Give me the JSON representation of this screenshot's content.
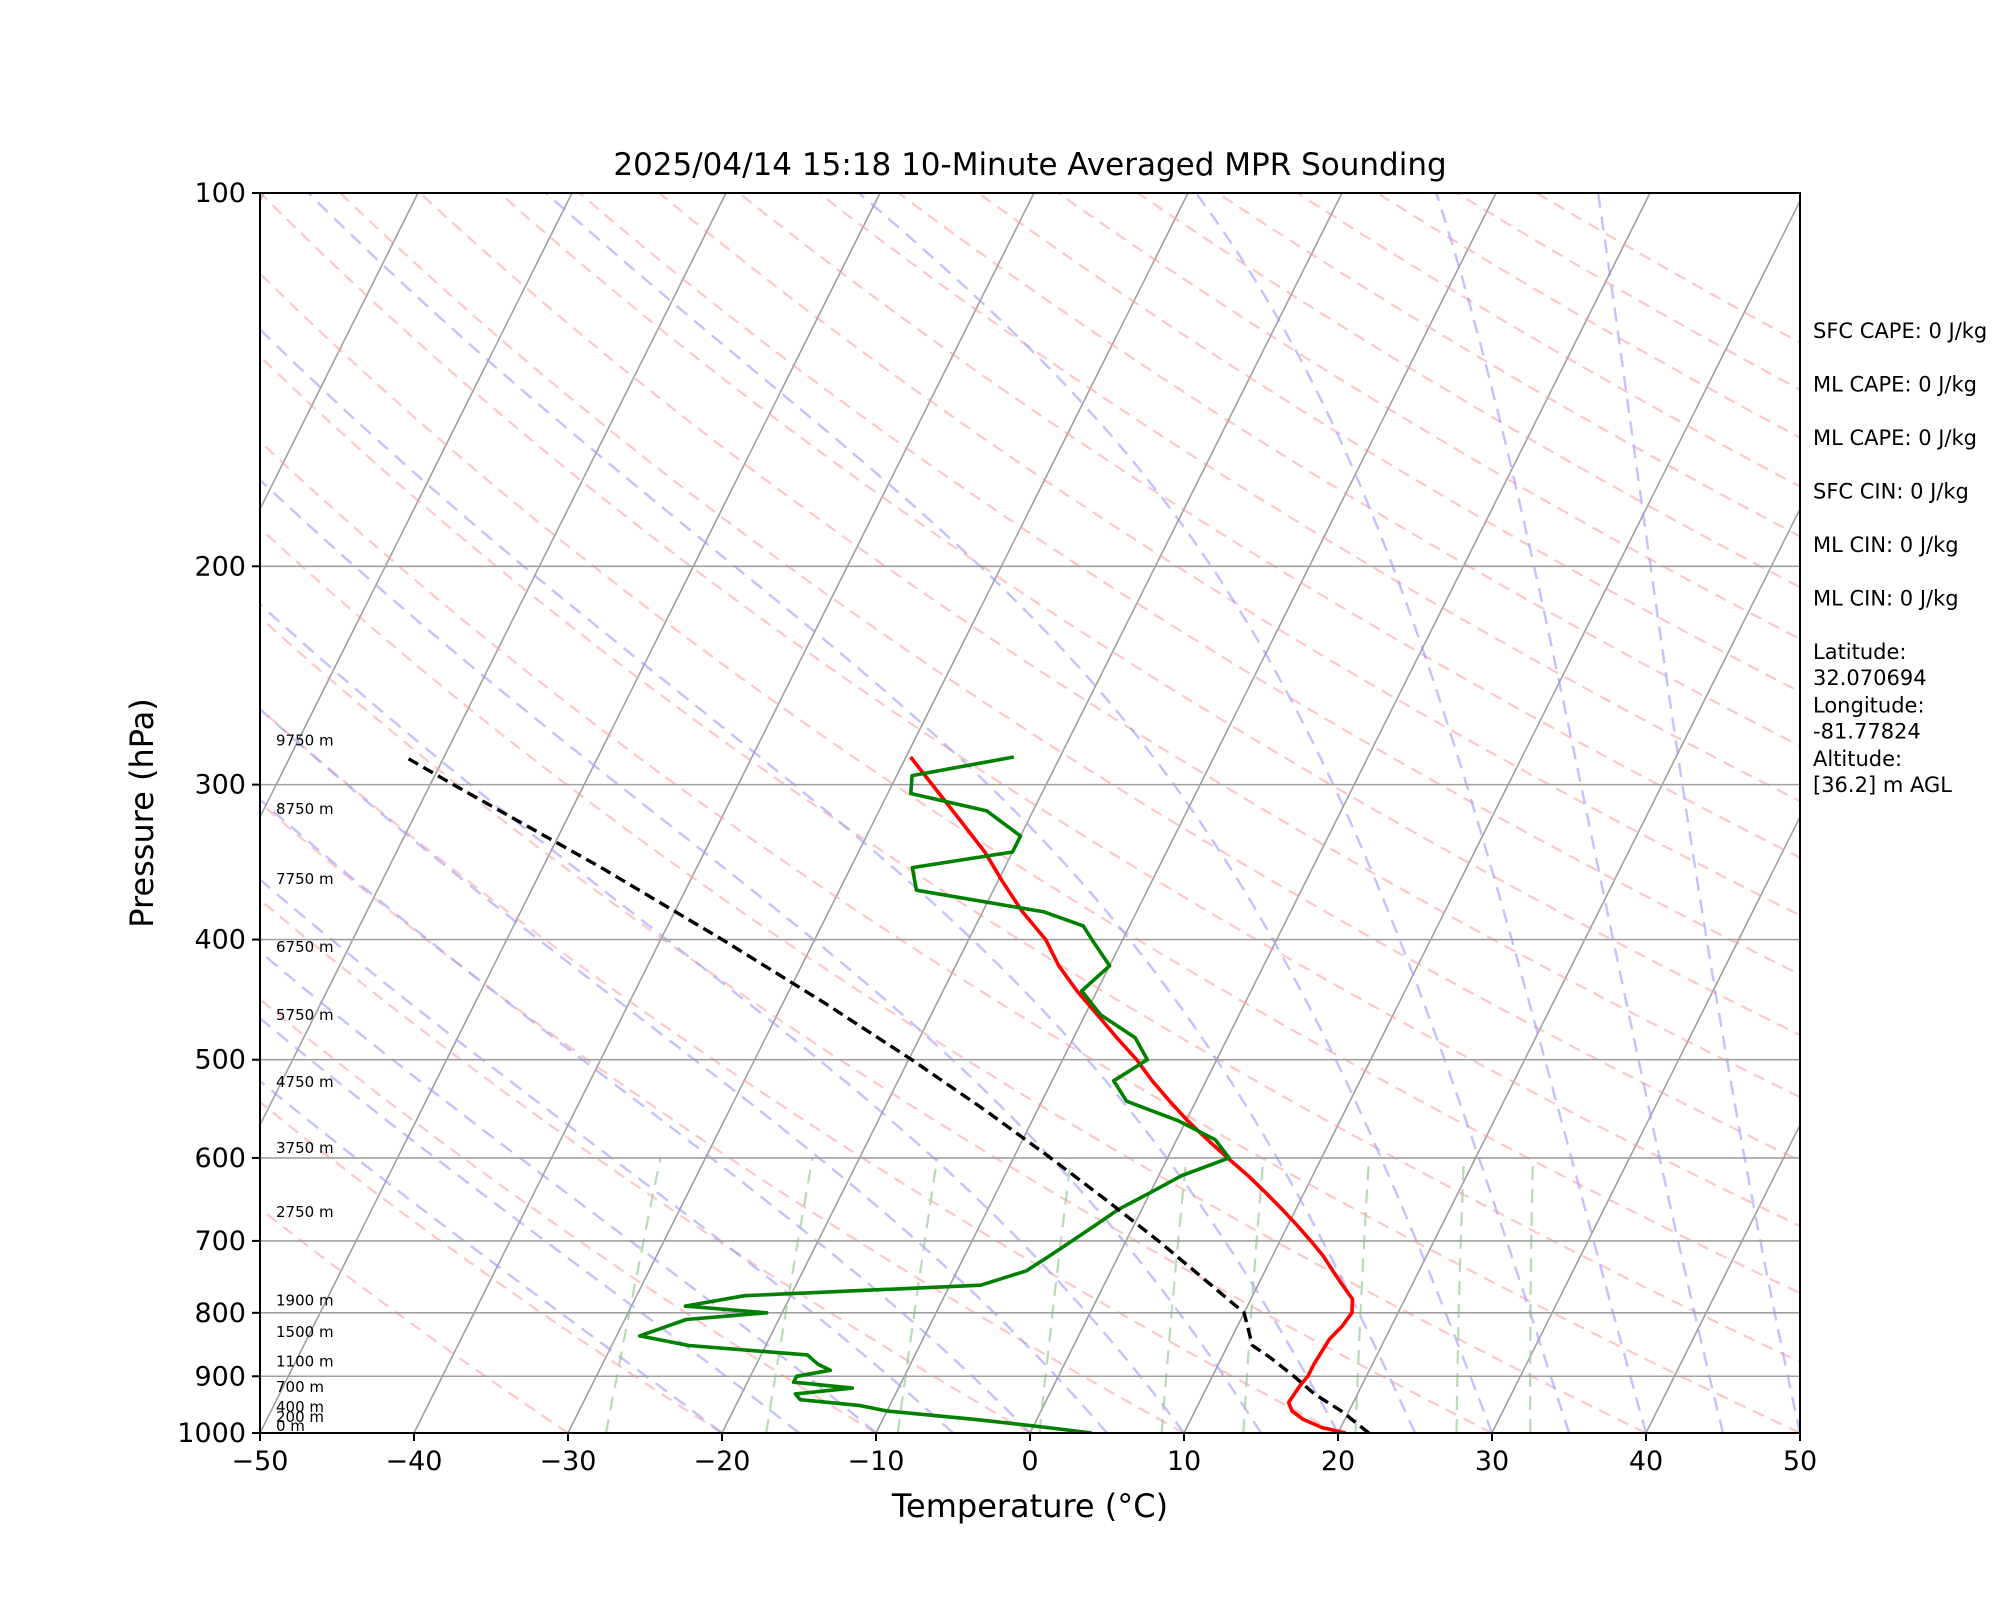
{
  "chart_data": {
    "type": "line",
    "subtype": "skew-t log-p",
    "title": "2025/04/14 15:18 10-Minute Averaged MPR Sounding",
    "xlabel": "Temperature (°C)",
    "ylabel": "Pressure (hPa)",
    "xlim": [
      -50,
      50
    ],
    "ylim": [
      1000,
      100
    ],
    "y_scale": "log",
    "grid": true,
    "x_ticks": [
      "−50",
      "−40",
      "−30",
      "−20",
      "−10",
      "0",
      "10",
      "20",
      "30",
      "40",
      "50"
    ],
    "y_ticks": [
      "100",
      "200",
      "300",
      "400",
      "500",
      "600",
      "700",
      "800",
      "900",
      "1000"
    ],
    "series": [
      {
        "color": "#ff0000",
        "style": "solid",
        "pressure": [
          1000,
          990,
          975,
          960,
          945,
          930,
          915,
          900,
          880,
          860,
          840,
          820,
          800,
          780,
          760,
          740,
          720,
          700,
          680,
          660,
          640,
          620,
          600,
          580,
          560,
          540,
          520,
          500,
          480,
          460,
          440,
          420,
          400,
          380,
          360,
          340,
          320,
          300,
          285
        ],
        "temperature": [
          20.5,
          18.8,
          17.3,
          16.3,
          15.8,
          15.9,
          16.0,
          16.2,
          16.2,
          16.3,
          16.4,
          16.8,
          17.0,
          16.6,
          15.5,
          14.4,
          13.3,
          12.0,
          10.6,
          9.1,
          7.5,
          5.8,
          3.9,
          2.0,
          0.1,
          -1.7,
          -3.5,
          -5.2,
          -7.2,
          -9.2,
          -11.3,
          -13.3,
          -15.0,
          -17.4,
          -19.6,
          -21.8,
          -24.5,
          -27.4,
          -29.7
        ]
      },
      {
        "color": "#008000",
        "style": "solid",
        "pressure": [
          1000,
          990,
          975,
          960,
          950,
          940,
          930,
          920,
          910,
          900,
          890,
          880,
          865,
          850,
          835,
          820,
          810,
          800,
          790,
          775,
          760,
          740,
          720,
          700,
          680,
          660,
          640,
          620,
          600,
          580,
          560,
          540,
          520,
          500,
          480,
          460,
          440,
          420,
          400,
          390,
          380,
          365,
          350,
          340,
          330,
          315,
          305,
          295,
          285
        ],
        "temperature": [
          4.0,
          1.0,
          -4.0,
          -10.0,
          -12.0,
          -16.0,
          -16.5,
          -13.0,
          -17.0,
          -17.0,
          -15.0,
          -16.0,
          -17.0,
          -25.0,
          -28.5,
          -27.0,
          -26.0,
          -21.0,
          -26.5,
          -23.0,
          -8.0,
          -5.5,
          -4.5,
          -3.5,
          -2.5,
          -1.5,
          0.0,
          1.5,
          4.0,
          2.5,
          -0.5,
          -4.5,
          -6.0,
          -4.5,
          -6.0,
          -9.0,
          -11.0,
          -10.0,
          -12.0,
          -13.0,
          -16.0,
          -25.0,
          -26.0,
          -20.0,
          -20.0,
          -23.0,
          -28.5,
          -29.0,
          -23.0
        ]
      },
      {
        "color": "#000000",
        "style": "dashed",
        "pressure": [
          1000,
          960,
          930,
          900,
          870,
          850,
          800,
          750,
          700,
          650,
          600,
          550,
          500,
          450,
          400,
          350,
          300,
          285
        ],
        "temperature": [
          22.0,
          19.5,
          17.2,
          15.3,
          13.2,
          11.6,
          10.0,
          6.2,
          2.1,
          -2.5,
          -7.6,
          -13.3,
          -19.8,
          -27.3,
          -36.0,
          -46.2,
          -58.5,
          -62.5
        ]
      }
    ],
    "height_labels": [
      "9750 m",
      "8750 m",
      "7750 m",
      "6750 m",
      "5750 m",
      "4750 m",
      "3750 m",
      "2750 m",
      "1900 m",
      "1500 m",
      "1100 m",
      "700 m",
      "400 m",
      "200 m",
      "0 m"
    ],
    "height_label_pressures": [
      280,
      318,
      362,
      411,
      466,
      528,
      597,
      672,
      792,
      840,
      887,
      930,
      965,
      983,
      1000
    ],
    "indices": [
      {
        "lines": [
          "SFC CAPE: 0 J/kg"
        ]
      },
      {
        "lines": [
          "ML CAPE: 0 J/kg"
        ]
      },
      {
        "lines": [
          "ML CAPE: 0 J/kg"
        ]
      },
      {
        "lines": [
          "SFC CIN: 0 J/kg"
        ]
      },
      {
        "lines": [
          "ML CIN: 0 J/kg"
        ]
      },
      {
        "lines": [
          "ML CIN: 0 J/kg"
        ]
      },
      {
        "lines": [
          "Latitude:",
          "32.070694"
        ]
      },
      {
        "lines": [
          "Longitude:",
          "-81.77824"
        ]
      },
      {
        "lines": [
          "Altitude:",
          "[36.2] m AGL"
        ]
      }
    ],
    "background_lines": {
      "isotherms_color": "#a0a0a0",
      "dry_adiabats_color": "#ff9999",
      "moist_adiabats_color": "#9999ff",
      "mixing_ratio_color": "#99cc99"
    }
  }
}
